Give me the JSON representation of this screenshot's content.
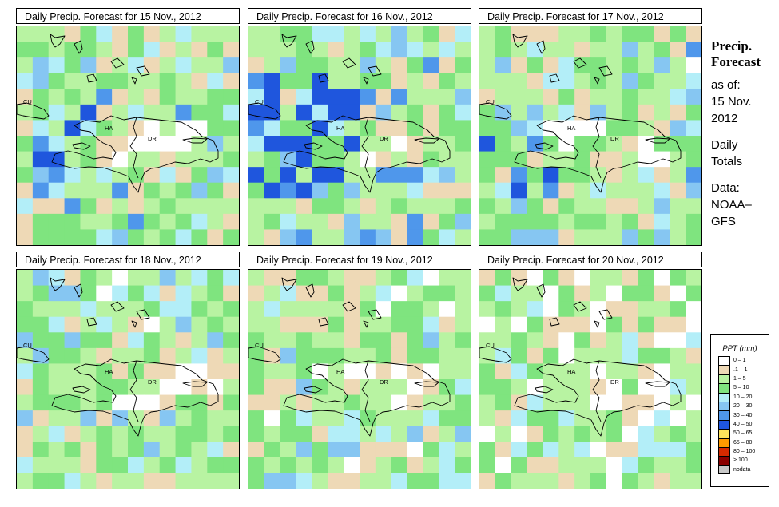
{
  "panels": [
    {
      "title": "Daily Precip. Forecast for  15 Nov., 2012",
      "seed": 11,
      "wet": 0.25,
      "blueZone": [
        1,
        5,
        5,
        9
      ],
      "blueBoost": 0.4
    },
    {
      "title": "Daily Precip. Forecast for  16 Nov., 2012",
      "seed": 23,
      "wet": 0.35,
      "blueZone": [
        0,
        6,
        3,
        10
      ],
      "blueBoost": 0.8
    },
    {
      "title": "Daily Precip. Forecast for  17 Nov., 2012",
      "seed": 37,
      "wet": 0.2,
      "blueZone": [
        0,
        4,
        6,
        10
      ],
      "blueBoost": 0.5
    },
    {
      "title": "Daily Precip. Forecast for  18 Nov., 2012",
      "seed": 41,
      "wet": 0.15,
      "blueZone": [
        4,
        9,
        5,
        8
      ],
      "blueBoost": 0.15
    },
    {
      "title": "Daily Precip. Forecast for  19 Nov., 2012",
      "seed": 53,
      "wet": 0.1,
      "blueZone": [
        4,
        6,
        5,
        7
      ],
      "blueBoost": 0.2
    },
    {
      "title": "Daily Precip. Forecast for  20 Nov., 2012",
      "seed": 67,
      "wet": -0.1,
      "blueZone": [
        0,
        0,
        0,
        0
      ],
      "blueBoost": 0.0
    }
  ],
  "map_labels": {
    "cuba": "CU",
    "haiti": "HA",
    "dominican_republic": "DR"
  },
  "sidebar": {
    "title_line1": "Precip.",
    "title_line2": "Forecast",
    "asof_line1": "as of:",
    "asof_line2": "15 Nov.",
    "asof_line3": "2012",
    "daily_line1": "Daily",
    "daily_line2": "Totals",
    "data_line1": "Data:",
    "data_line2": "NOAA–",
    "data_line3": "GFS"
  },
  "legend": {
    "title": "PPT (mm)",
    "items": [
      {
        "label": "0 – 1",
        "color": "#ffffff"
      },
      {
        "label": ".1 – 1",
        "color": "#eed9b6"
      },
      {
        "label": "1 – 5",
        "color": "#b8f3a2"
      },
      {
        "label": "5 – 10",
        "color": "#7fe47f"
      },
      {
        "label": "10 – 20",
        "color": "#b3eef8"
      },
      {
        "label": "20 – 30",
        "color": "#86c6f2"
      },
      {
        "label": "30 – 40",
        "color": "#4f97eb"
      },
      {
        "label": "40 – 50",
        "color": "#1f56dd"
      },
      {
        "label": "50 – 65",
        "color": "#ffe45c"
      },
      {
        "label": "65 – 80",
        "color": "#ff9a00"
      },
      {
        "label": "80 – 100",
        "color": "#d62a00"
      },
      {
        "label": "> 100",
        "color": "#8b0000"
      },
      {
        "label": "nodata",
        "color": "#c8c8c8"
      }
    ]
  }
}
